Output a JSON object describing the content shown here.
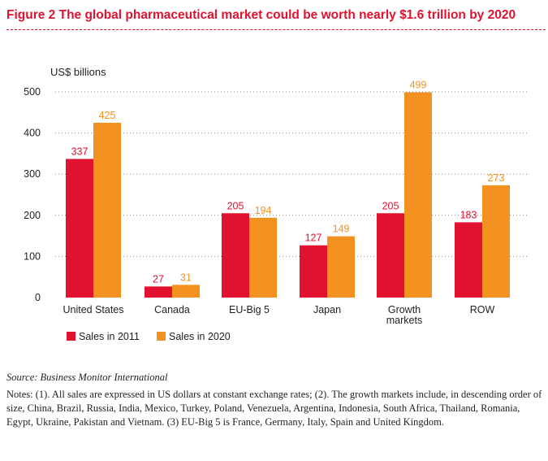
{
  "figure": {
    "title": "Figure 2  The global pharmaceutical market could be worth nearly $1.6 trillion by 2020",
    "source": "Source: Business Monitor International",
    "notes": "Notes: (1). All sales are expressed in US dollars at constant exchange rates; (2). The growth markets include, in descending order of size, China, Brazil, Russia, India, Mexico, Turkey, Poland, Venezuela, Argentina, Indonesia, South Africa, Thailand, Romania, Egypt, Ukraine, Pakistan and Vietnam. (3) EU-Big 5 is France, Germany, Italy, Spain and United Kingdom."
  },
  "chart_data": {
    "type": "bar",
    "ylabel": "US$ billions",
    "ylim": [
      0,
      500
    ],
    "yticks": [
      0,
      100,
      200,
      300,
      400,
      500
    ],
    "categories": [
      [
        "United States"
      ],
      [
        "Canada"
      ],
      [
        "EU-Big 5"
      ],
      [
        "Japan"
      ],
      [
        "Growth",
        "markets"
      ],
      [
        "ROW"
      ]
    ],
    "series": [
      {
        "name": "Sales in 2011",
        "color": "#e0122f",
        "values": [
          337,
          27,
          205,
          127,
          205,
          183
        ]
      },
      {
        "name": "Sales in 2020",
        "color": "#f39121",
        "values": [
          425,
          31,
          194,
          149,
          499,
          273
        ]
      }
    ],
    "grid": "horizontal dotted",
    "legend_position": "bottom-left"
  }
}
